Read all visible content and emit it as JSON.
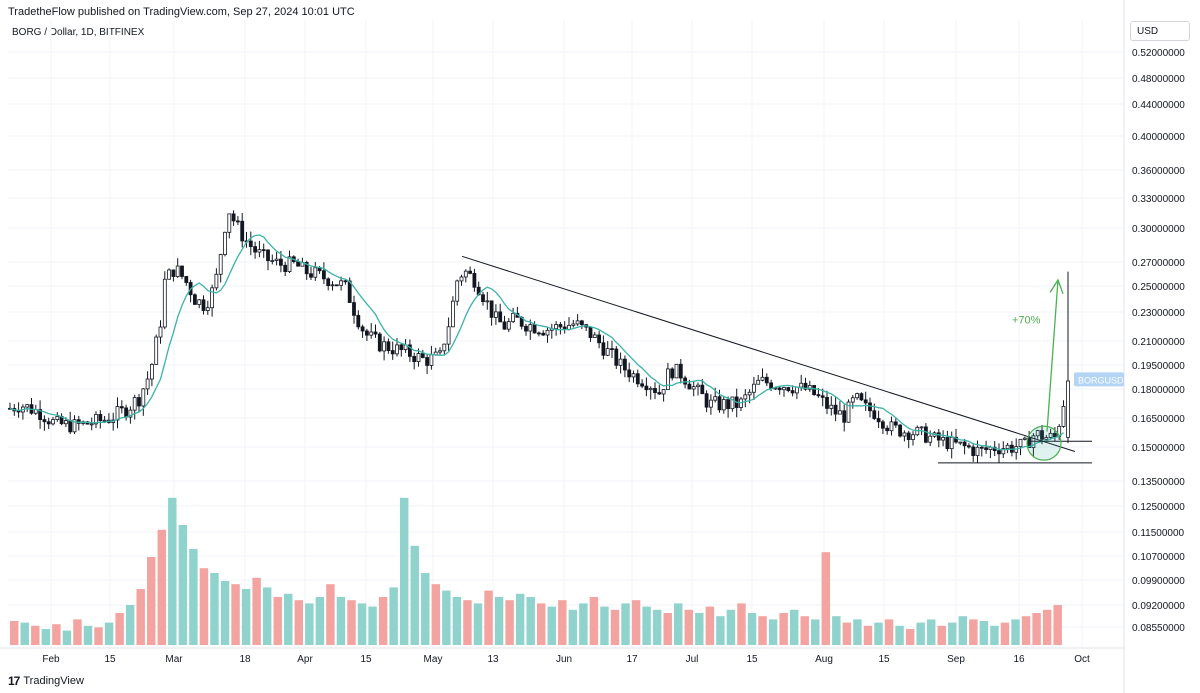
{
  "header": {
    "publisher_line": "TradetheFlow published on TradingView.com, Sep 27, 2024 10:01 UTC",
    "symbol_line": "BORG / Dollar, 1D, BITFINEX",
    "currency": "USD"
  },
  "footer": {
    "brand": "TradingView"
  },
  "colors": {
    "up": "#26a69a",
    "down": "#ef5350",
    "candle": "#131722",
    "ma": "#3bb3a8",
    "volume_up": "#8fd3cc",
    "volume_down": "#f3a3a0",
    "arrow": "#4caf50",
    "trendline": "#131722",
    "price_label_bg": "#b3d4f5"
  },
  "chart_data": {
    "type": "candlestick",
    "y_ticks": [
      "0.52000000",
      "0.48000000",
      "0.44000000",
      "0.40000000",
      "0.36000000",
      "0.33000000",
      "0.30000000",
      "0.27000000",
      "0.25000000",
      "0.23000000",
      "0.21000000",
      "0.19500000",
      "0.18000000",
      "0.16500000",
      "0.15000000",
      "0.13500000",
      "0.12500000",
      "0.11500000",
      "0.10700000",
      "0.09900000",
      "0.09200000",
      "0.08550000"
    ],
    "x_ticks": [
      "Feb",
      "15",
      "Mar",
      "18",
      "Apr",
      "15",
      "May",
      "13",
      "Jun",
      "17",
      "Jul",
      "15",
      "Aug",
      "15",
      "Sep",
      "16",
      "Oct"
    ],
    "price_label": "BORGUSD",
    "annotation": "+70%",
    "price_series": [
      [
        0,
        0.168
      ],
      [
        20,
        0.172
      ],
      [
        40,
        0.168
      ],
      [
        55,
        0.162
      ],
      [
        75,
        0.161
      ],
      [
        95,
        0.163
      ],
      [
        110,
        0.165
      ],
      [
        125,
        0.169
      ],
      [
        140,
        0.176
      ],
      [
        150,
        0.19
      ],
      [
        160,
        0.22
      ],
      [
        165,
        0.255
      ],
      [
        175,
        0.265
      ],
      [
        185,
        0.255
      ],
      [
        195,
        0.24
      ],
      [
        205,
        0.235
      ],
      [
        215,
        0.25
      ],
      [
        222,
        0.285
      ],
      [
        228,
        0.32
      ],
      [
        235,
        0.305
      ],
      [
        245,
        0.29
      ],
      [
        255,
        0.28
      ],
      [
        265,
        0.273
      ],
      [
        280,
        0.268
      ],
      [
        295,
        0.268
      ],
      [
        305,
        0.262
      ],
      [
        315,
        0.26
      ],
      [
        330,
        0.255
      ],
      [
        345,
        0.25
      ],
      [
        355,
        0.23
      ],
      [
        365,
        0.215
      ],
      [
        380,
        0.208
      ],
      [
        395,
        0.205
      ],
      [
        410,
        0.202
      ],
      [
        425,
        0.198
      ],
      [
        440,
        0.2
      ],
      [
        450,
        0.225
      ],
      [
        458,
        0.258
      ],
      [
        465,
        0.262
      ],
      [
        475,
        0.255
      ],
      [
        485,
        0.24
      ],
      [
        495,
        0.225
      ],
      [
        505,
        0.22
      ],
      [
        515,
        0.225
      ],
      [
        525,
        0.222
      ],
      [
        535,
        0.22
      ],
      [
        545,
        0.218
      ],
      [
        560,
        0.22
      ],
      [
        575,
        0.222
      ],
      [
        590,
        0.215
      ],
      [
        605,
        0.205
      ],
      [
        620,
        0.195
      ],
      [
        635,
        0.188
      ],
      [
        650,
        0.183
      ],
      [
        660,
        0.178
      ],
      [
        670,
        0.192
      ],
      [
        680,
        0.19
      ],
      [
        695,
        0.18
      ],
      [
        710,
        0.172
      ],
      [
        725,
        0.172
      ],
      [
        740,
        0.172
      ],
      [
        750,
        0.178
      ],
      [
        760,
        0.185
      ],
      [
        775,
        0.183
      ],
      [
        790,
        0.182
      ],
      [
        805,
        0.18
      ],
      [
        815,
        0.177
      ],
      [
        825,
        0.172
      ],
      [
        835,
        0.168
      ],
      [
        845,
        0.166
      ],
      [
        855,
        0.175
      ],
      [
        865,
        0.17
      ],
      [
        875,
        0.168
      ],
      [
        890,
        0.16
      ],
      [
        905,
        0.158
      ],
      [
        920,
        0.157
      ],
      [
        935,
        0.154
      ],
      [
        950,
        0.152
      ],
      [
        965,
        0.15
      ],
      [
        980,
        0.148
      ],
      [
        995,
        0.15
      ],
      [
        1010,
        0.15
      ],
      [
        1025,
        0.151
      ],
      [
        1035,
        0.157
      ],
      [
        1045,
        0.155
      ],
      [
        1055,
        0.155
      ],
      [
        1062,
        0.168
      ],
      [
        1067,
        0.185
      ]
    ],
    "volume_series": [
      [
        0.15,
        0
      ],
      [
        0.14,
        1
      ],
      [
        0.12,
        0
      ],
      [
        0.1,
        1
      ],
      [
        0.13,
        0
      ],
      [
        0.09,
        1
      ],
      [
        0.16,
        0
      ],
      [
        0.12,
        1
      ],
      [
        0.11,
        0
      ],
      [
        0.14,
        1
      ],
      [
        0.2,
        0
      ],
      [
        0.25,
        1
      ],
      [
        0.35,
        0
      ],
      [
        0.55,
        0
      ],
      [
        0.72,
        0
      ],
      [
        0.92,
        1
      ],
      [
        0.75,
        1
      ],
      [
        0.6,
        1
      ],
      [
        0.48,
        0
      ],
      [
        0.45,
        1
      ],
      [
        0.4,
        1
      ],
      [
        0.38,
        0
      ],
      [
        0.35,
        1
      ],
      [
        0.42,
        0
      ],
      [
        0.36,
        1
      ],
      [
        0.3,
        0
      ],
      [
        0.32,
        1
      ],
      [
        0.28,
        0
      ],
      [
        0.26,
        1
      ],
      [
        0.3,
        1
      ],
      [
        0.38,
        0
      ],
      [
        0.3,
        1
      ],
      [
        0.28,
        0
      ],
      [
        0.26,
        1
      ],
      [
        0.24,
        1
      ],
      [
        0.3,
        0
      ],
      [
        0.36,
        1
      ],
      [
        0.92,
        1
      ],
      [
        0.62,
        1
      ],
      [
        0.45,
        1
      ],
      [
        0.38,
        0
      ],
      [
        0.34,
        1
      ],
      [
        0.3,
        1
      ],
      [
        0.28,
        0
      ],
      [
        0.26,
        1
      ],
      [
        0.34,
        0
      ],
      [
        0.3,
        1
      ],
      [
        0.28,
        0
      ],
      [
        0.32,
        1
      ],
      [
        0.3,
        1
      ],
      [
        0.26,
        0
      ],
      [
        0.24,
        1
      ],
      [
        0.28,
        0
      ],
      [
        0.22,
        1
      ],
      [
        0.26,
        1
      ],
      [
        0.3,
        0
      ],
      [
        0.24,
        1
      ],
      [
        0.22,
        0
      ],
      [
        0.26,
        1
      ],
      [
        0.28,
        0
      ],
      [
        0.24,
        1
      ],
      [
        0.22,
        1
      ],
      [
        0.2,
        0
      ],
      [
        0.26,
        1
      ],
      [
        0.22,
        0
      ],
      [
        0.2,
        1
      ],
      [
        0.24,
        0
      ],
      [
        0.18,
        1
      ],
      [
        0.22,
        1
      ],
      [
        0.26,
        0
      ],
      [
        0.2,
        1
      ],
      [
        0.18,
        0
      ],
      [
        0.16,
        1
      ],
      [
        0.2,
        0
      ],
      [
        0.22,
        1
      ],
      [
        0.18,
        0
      ],
      [
        0.16,
        1
      ],
      [
        0.58,
        0
      ],
      [
        0.18,
        1
      ],
      [
        0.14,
        0
      ],
      [
        0.16,
        1
      ],
      [
        0.12,
        0
      ],
      [
        0.14,
        1
      ],
      [
        0.16,
        0
      ],
      [
        0.12,
        1
      ],
      [
        0.1,
        0
      ],
      [
        0.14,
        1
      ],
      [
        0.16,
        1
      ],
      [
        0.12,
        0
      ],
      [
        0.14,
        1
      ],
      [
        0.18,
        1
      ],
      [
        0.16,
        0
      ],
      [
        0.15,
        1
      ],
      [
        0.12,
        1
      ],
      [
        0.14,
        0
      ],
      [
        0.16,
        1
      ],
      [
        0.18,
        0
      ],
      [
        0.2,
        0
      ],
      [
        0.22,
        0
      ],
      [
        0.25,
        0
      ]
    ]
  }
}
